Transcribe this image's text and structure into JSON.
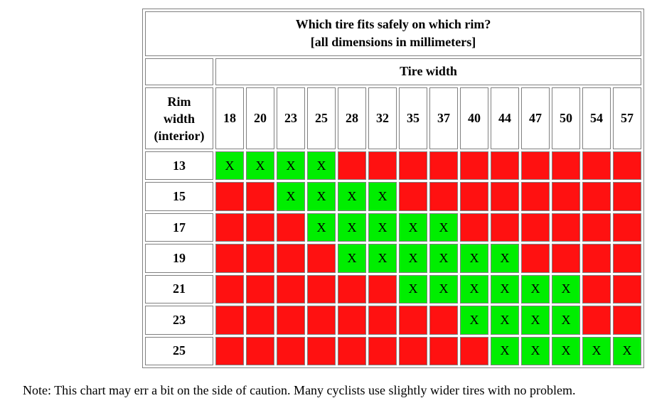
{
  "table": {
    "title_line1": "Which tire fits safely on which rim?",
    "title_line2": "[all dimensions in millimeters]",
    "tire_width_label": "Tire width",
    "rim_label_lines": [
      "Rim",
      "width",
      "(interior)"
    ],
    "tire_widths": [
      "18",
      "20",
      "23",
      "25",
      "28",
      "32",
      "35",
      "37",
      "40",
      "44",
      "47",
      "50",
      "54",
      "57"
    ],
    "fit_mark": "X",
    "colors": {
      "fit": "#00ee00",
      "no_fit": "#ff1111"
    },
    "rows": [
      {
        "rim": "13",
        "fits": [
          1,
          1,
          1,
          1,
          0,
          0,
          0,
          0,
          0,
          0,
          0,
          0,
          0,
          0
        ]
      },
      {
        "rim": "15",
        "fits": [
          0,
          0,
          1,
          1,
          1,
          1,
          0,
          0,
          0,
          0,
          0,
          0,
          0,
          0
        ]
      },
      {
        "rim": "17",
        "fits": [
          0,
          0,
          0,
          1,
          1,
          1,
          1,
          1,
          0,
          0,
          0,
          0,
          0,
          0
        ]
      },
      {
        "rim": "19",
        "fits": [
          0,
          0,
          0,
          0,
          1,
          1,
          1,
          1,
          1,
          1,
          0,
          0,
          0,
          0
        ]
      },
      {
        "rim": "21",
        "fits": [
          0,
          0,
          0,
          0,
          0,
          0,
          1,
          1,
          1,
          1,
          1,
          1,
          0,
          0
        ]
      },
      {
        "rim": "23",
        "fits": [
          0,
          0,
          0,
          0,
          0,
          0,
          0,
          0,
          1,
          1,
          1,
          1,
          0,
          0
        ]
      },
      {
        "rim": "25",
        "fits": [
          0,
          0,
          0,
          0,
          0,
          0,
          0,
          0,
          0,
          1,
          1,
          1,
          1,
          1
        ]
      }
    ]
  },
  "note": "Note: This chart may err a bit on the side of caution. Many cyclists use slightly wider tires with no problem."
}
